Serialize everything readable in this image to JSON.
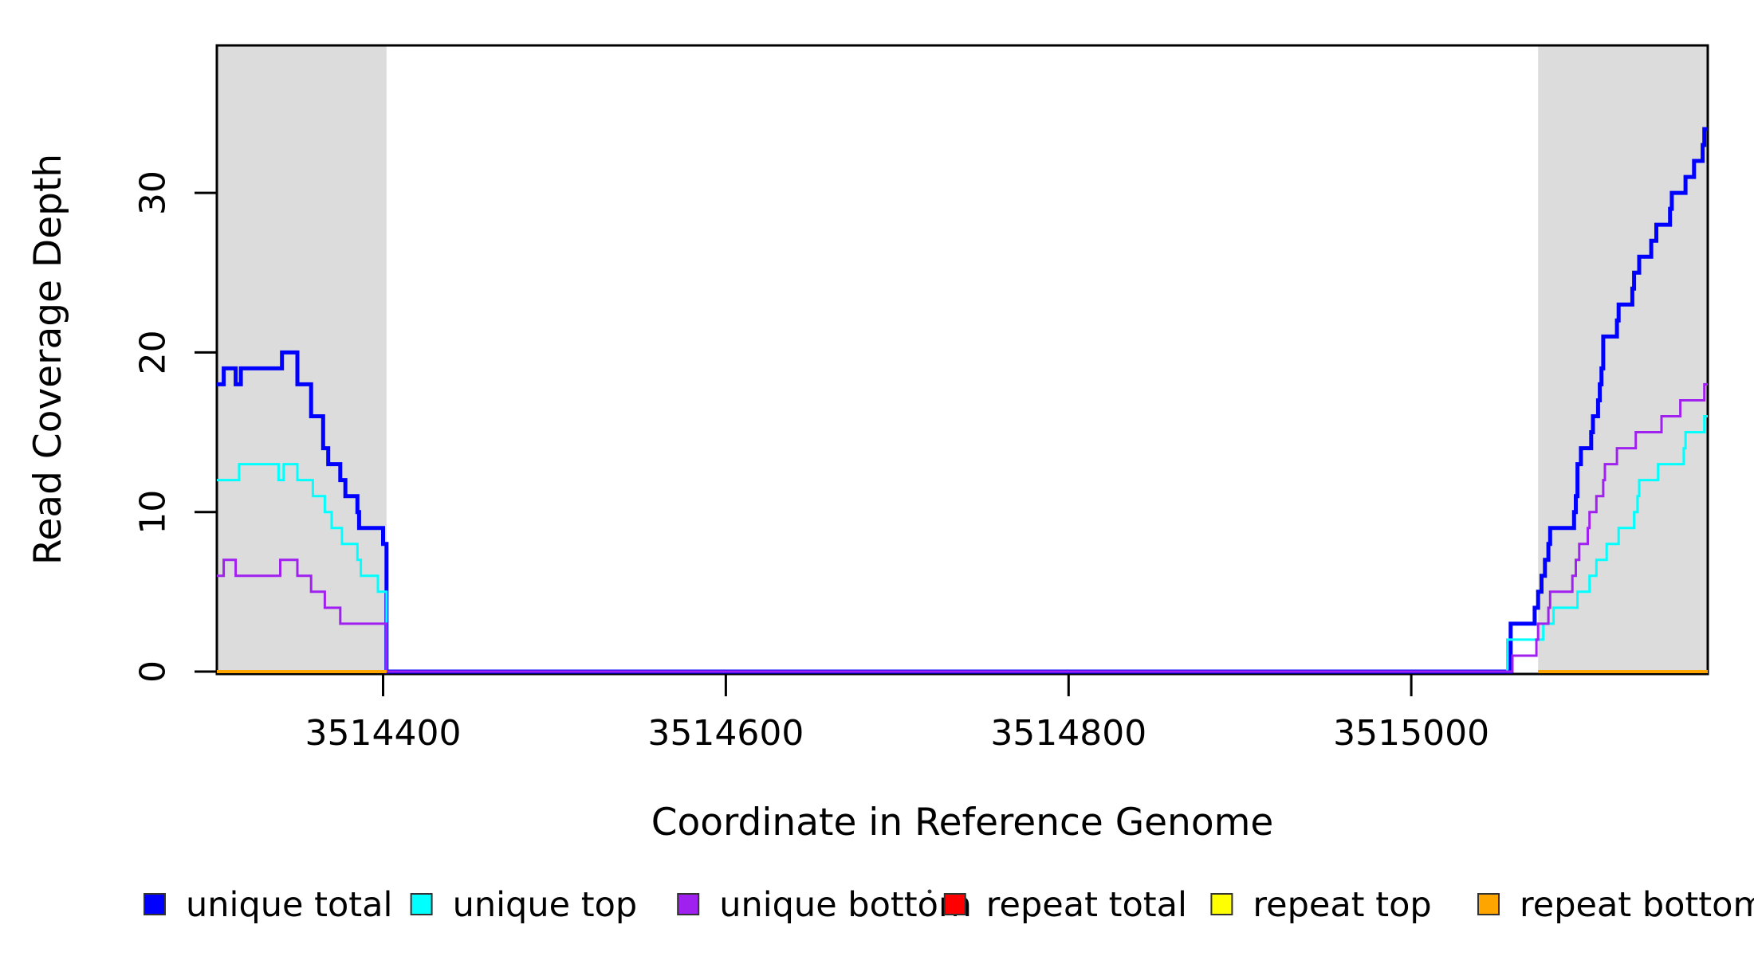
{
  "figure": {
    "background": "#FFFFFF",
    "plot_box_color": "#000000",
    "shading_color": "#DCDCDC"
  },
  "chart_data": {
    "type": "line",
    "subtype": "step",
    "title": "",
    "xlabel": "Coordinate in Reference Genome",
    "ylabel": "Read Coverage Depth",
    "xlim": [
      3514303,
      3515173
    ],
    "ylim": [
      0,
      39.24
    ],
    "x_ticks": [
      3514400,
      3514600,
      3514800,
      3515000
    ],
    "x_tick_labels": [
      "3514400",
      "3514600",
      "3514800",
      "3515000"
    ],
    "y_ticks": [
      0,
      10,
      20,
      30
    ],
    "y_tick_labels": [
      "0",
      "10",
      "20",
      "30"
    ],
    "grid": false,
    "legend_position": "bottom",
    "shaded_regions": [
      {
        "name": "repeat-region-left",
        "x0": 3514303,
        "x1": 3514402,
        "color": "#DCDCDC"
      },
      {
        "name": "repeat-region-right",
        "x0": 3515074,
        "x1": 3515173,
        "color": "#DCDCDC"
      }
    ],
    "series": [
      {
        "name": "unique total",
        "color": "#0000FF",
        "width": 5,
        "steps": [
          [
            3514303,
            18
          ],
          [
            3514307,
            19
          ],
          [
            3514314,
            18
          ],
          [
            3514317,
            19
          ],
          [
            3514341,
            20
          ],
          [
            3514350,
            18
          ],
          [
            3514358,
            16
          ],
          [
            3514365,
            14
          ],
          [
            3514368,
            13
          ],
          [
            3514375,
            12
          ],
          [
            3514378,
            11
          ],
          [
            3514385,
            10
          ],
          [
            3514386,
            9
          ],
          [
            3514400,
            8
          ],
          [
            3514402,
            0
          ],
          [
            3515058,
            3
          ],
          [
            3515072,
            4
          ],
          [
            3515074,
            5
          ],
          [
            3515076,
            6
          ],
          [
            3515078,
            7
          ],
          [
            3515080,
            8
          ],
          [
            3515081,
            9
          ],
          [
            3515095,
            10
          ],
          [
            3515096,
            11
          ],
          [
            3515097,
            13
          ],
          [
            3515099,
            14
          ],
          [
            3515105,
            15
          ],
          [
            3515106,
            16
          ],
          [
            3515109,
            17
          ],
          [
            3515110,
            18
          ],
          [
            3515111,
            19
          ],
          [
            3515112,
            21
          ],
          [
            3515120,
            22
          ],
          [
            3515121,
            23
          ],
          [
            3515129,
            24
          ],
          [
            3515130,
            25
          ],
          [
            3515133,
            26
          ],
          [
            3515140,
            27
          ],
          [
            3515143,
            28
          ],
          [
            3515151,
            29
          ],
          [
            3515152,
            30
          ],
          [
            3515160,
            31
          ],
          [
            3515165,
            32
          ],
          [
            3515170,
            33
          ],
          [
            3515171,
            34
          ]
        ]
      },
      {
        "name": "unique top",
        "color": "#00FFFF",
        "width": 3,
        "steps": [
          [
            3514303,
            12
          ],
          [
            3514316,
            13
          ],
          [
            3514339,
            12
          ],
          [
            3514342,
            13
          ],
          [
            3514350,
            12
          ],
          [
            3514359,
            11
          ],
          [
            3514366,
            10
          ],
          [
            3514370,
            9
          ],
          [
            3514376,
            8
          ],
          [
            3514385,
            7
          ],
          [
            3514387,
            6
          ],
          [
            3514397,
            5
          ],
          [
            3514402,
            0
          ],
          [
            3515056,
            2
          ],
          [
            3515077,
            3
          ],
          [
            3515083,
            4
          ],
          [
            3515097,
            5
          ],
          [
            3515104,
            6
          ],
          [
            3515108,
            7
          ],
          [
            3515114,
            8
          ],
          [
            3515121,
            9
          ],
          [
            3515130,
            10
          ],
          [
            3515132,
            11
          ],
          [
            3515133,
            12
          ],
          [
            3515144,
            13
          ],
          [
            3515159,
            14
          ],
          [
            3515160,
            15
          ],
          [
            3515171,
            16
          ]
        ]
      },
      {
        "name": "unique bottom",
        "color": "#A020F0",
        "width": 3,
        "steps": [
          [
            3514303,
            6
          ],
          [
            3514307,
            7
          ],
          [
            3514314,
            6
          ],
          [
            3514340,
            7
          ],
          [
            3514350,
            6
          ],
          [
            3514358,
            5
          ],
          [
            3514366,
            4
          ],
          [
            3514375,
            3
          ],
          [
            3514402,
            0
          ],
          [
            3515059,
            1
          ],
          [
            3515073,
            2
          ],
          [
            3515074,
            3
          ],
          [
            3515080,
            4
          ],
          [
            3515081,
            5
          ],
          [
            3515094,
            6
          ],
          [
            3515096,
            7
          ],
          [
            3515098,
            8
          ],
          [
            3515103,
            9
          ],
          [
            3515104,
            10
          ],
          [
            3515108,
            11
          ],
          [
            3515112,
            12
          ],
          [
            3515113,
            13
          ],
          [
            3515120,
            14
          ],
          [
            3515131,
            15
          ],
          [
            3515146,
            16
          ],
          [
            3515157,
            17
          ],
          [
            3515171,
            18
          ]
        ]
      },
      {
        "name": "repeat total",
        "color": "#FF0000",
        "width": 3,
        "segments_at_zero": [
          [
            3514303,
            3514402
          ],
          [
            3515074,
            3515173
          ]
        ]
      },
      {
        "name": "repeat top",
        "color": "#FFFF00",
        "width": 3,
        "segments_at_zero": [
          [
            3514303,
            3514402
          ],
          [
            3515074,
            3515173
          ]
        ]
      },
      {
        "name": "repeat bottom",
        "color": "#FFA500",
        "width": 4,
        "segments_at_zero": [
          [
            3514303,
            3514402
          ],
          [
            3515074,
            3515173
          ]
        ]
      }
    ],
    "legend": {
      "items": [
        {
          "label": "unique total",
          "color": "#0000FF"
        },
        {
          "label": "unique top",
          "color": "#00FFFF"
        },
        {
          "label": "unique bottom",
          "color": "#A020F0"
        },
        {
          "label": "repeat total",
          "color": "#FF0000"
        },
        {
          "label": "repeat top",
          "color": "#FFFF00"
        },
        {
          "label": "repeat bottom",
          "color": "#FFA500"
        }
      ]
    }
  }
}
